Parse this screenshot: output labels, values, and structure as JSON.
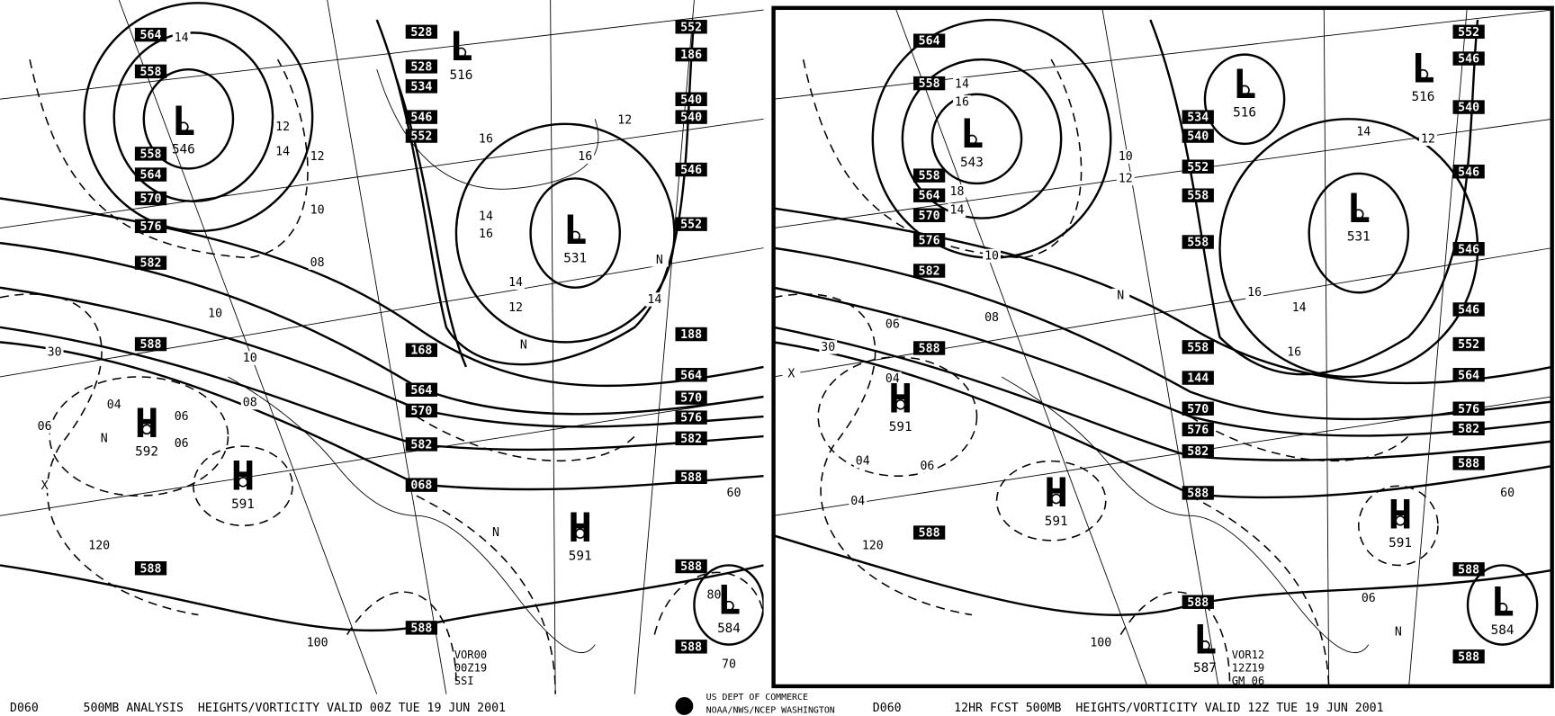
{
  "left_panel": {
    "height_boxes": [
      "564",
      "558",
      "558",
      "564",
      "570",
      "576",
      "582",
      "588",
      "588",
      "528",
      "528",
      "534",
      "546",
      "552",
      "168",
      "564",
      "570",
      "582",
      "068",
      "588",
      "552",
      "186",
      "540",
      "540",
      "546",
      "552",
      "188",
      "564",
      "570",
      "576",
      "582",
      "588",
      "588",
      "588"
    ],
    "centers": [
      {
        "letter": "L",
        "value": "546"
      },
      {
        "letter": "L",
        "value": "516"
      },
      {
        "letter": "L",
        "value": "531"
      },
      {
        "letter": "L",
        "value": "584"
      },
      {
        "letter": "H",
        "value": "592"
      },
      {
        "letter": "H",
        "value": "591"
      },
      {
        "letter": "H",
        "value": "591"
      }
    ],
    "annotations": [
      "VOR00",
      "00Z19",
      "SSI"
    ],
    "contour_labels": [
      "14",
      "12",
      "14",
      "12",
      "10",
      "08",
      "10",
      "10",
      "08",
      "06",
      "06",
      "04",
      "06",
      "N",
      "X",
      "120",
      "100",
      "30",
      "16",
      "14",
      "16",
      "14",
      "12",
      "N",
      "12",
      "14",
      "N",
      "16",
      "N",
      "60",
      "70",
      "80"
    ]
  },
  "right_panel": {
    "height_boxes": [
      "564",
      "558",
      "558",
      "564",
      "570",
      "576",
      "582",
      "588",
      "588",
      "534",
      "540",
      "552",
      "558",
      "558",
      "558",
      "144",
      "570",
      "576",
      "582",
      "588",
      "588",
      "552",
      "546",
      "540",
      "546",
      "546",
      "546",
      "552",
      "564",
      "576",
      "582",
      "588",
      "588",
      "588"
    ],
    "centers": [
      {
        "letter": "L",
        "value": "543"
      },
      {
        "letter": "L",
        "value": "516"
      },
      {
        "letter": "L",
        "value": "531"
      },
      {
        "letter": "L",
        "value": "516"
      },
      {
        "letter": "L",
        "value": "584"
      },
      {
        "letter": "L",
        "value": "587"
      },
      {
        "letter": "H",
        "value": "591"
      },
      {
        "letter": "H",
        "value": "591"
      },
      {
        "letter": "H",
        "value": "591"
      }
    ],
    "annotations": [
      "VOR12",
      "12Z19",
      "GM 06"
    ],
    "contour_labels": [
      "14",
      "16",
      "18",
      "14",
      "10",
      "08",
      "06",
      "04",
      "X",
      "04",
      "04",
      "06",
      "120",
      "100",
      "30",
      "16",
      "14",
      "16",
      "N",
      "10",
      "12",
      "12",
      "14",
      "N",
      "06",
      "60"
    ]
  },
  "footer": {
    "left_code": "D060",
    "left_title": "500MB ANALYSIS  HEIGHTS/VORTICITY VALID 00Z TUE 19 JUN 2001",
    "agency_line1": "US DEPT OF COMMERCE",
    "agency_line2": "NOAA/NWS/NCEP WASHINGTON",
    "right_code": "D060",
    "right_title": "12HR FCST 500MB  HEIGHTS/VORTICITY VALID 12Z TUE 19 JUN 2001"
  }
}
